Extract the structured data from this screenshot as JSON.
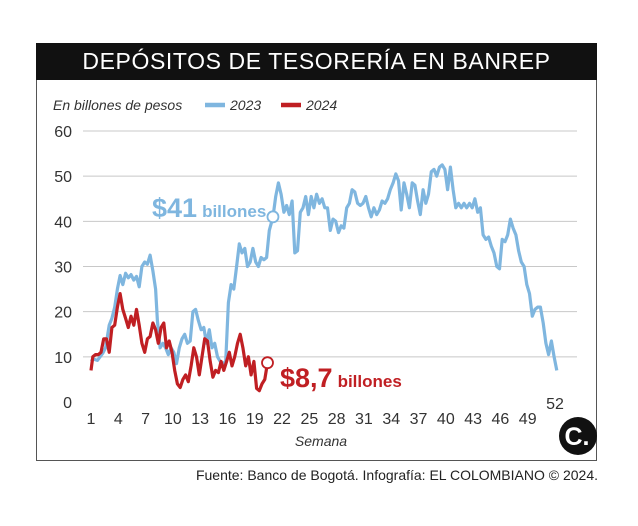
{
  "chart_data": {
    "type": "line",
    "title": "DEPÓSITOS DE TESORERÍA EN BANREP",
    "subtitle": "En billones de pesos",
    "xlabel": "Semana",
    "ylabel": "",
    "ylim": [
      0,
      60
    ],
    "xlim": [
      1,
      52
    ],
    "y_ticks": [
      0,
      10,
      20,
      30,
      40,
      50,
      60
    ],
    "x_ticks": [
      1,
      4,
      7,
      10,
      13,
      16,
      19,
      22,
      25,
      28,
      31,
      34,
      37,
      40,
      43,
      46,
      49,
      52
    ],
    "grid": true,
    "legend_position": "top",
    "series": [
      {
        "name": "2023",
        "color": "#7fb6df",
        "points": [
          [
            1,
            9
          ],
          [
            1.3,
            9.5
          ],
          [
            1.7,
            9.2
          ],
          [
            2,
            10
          ],
          [
            2.3,
            10.8
          ],
          [
            2.6,
            12
          ],
          [
            3,
            17
          ],
          [
            3.3,
            18.5
          ],
          [
            3.6,
            21
          ],
          [
            3.9,
            25
          ],
          [
            4.2,
            28
          ],
          [
            4.5,
            26
          ],
          [
            4.8,
            28.5
          ],
          [
            5.1,
            27.5
          ],
          [
            5.4,
            28.2
          ],
          [
            5.7,
            27
          ],
          [
            6,
            27.8
          ],
          [
            6.3,
            25.5
          ],
          [
            6.6,
            30
          ],
          [
            6.9,
            31
          ],
          [
            7.2,
            30.5
          ],
          [
            7.5,
            32.5
          ],
          [
            7.8,
            29
          ],
          [
            8.1,
            25
          ],
          [
            8.3,
            18
          ],
          [
            8.6,
            12
          ],
          [
            8.9,
            13
          ],
          [
            9.2,
            12
          ],
          [
            9.5,
            10.5
          ],
          [
            9.8,
            12
          ],
          [
            10.1,
            11
          ],
          [
            10.4,
            8.5
          ],
          [
            10.7,
            12
          ],
          [
            11,
            14
          ],
          [
            11.3,
            15
          ],
          [
            11.6,
            13
          ],
          [
            11.9,
            13.5
          ],
          [
            12.2,
            20
          ],
          [
            12.5,
            20.5
          ],
          [
            12.8,
            18
          ],
          [
            13.1,
            16
          ],
          [
            13.4,
            16.5
          ],
          [
            13.7,
            13
          ],
          [
            14,
            16
          ],
          [
            14.3,
            12
          ],
          [
            14.6,
            13
          ],
          [
            14.9,
            10
          ],
          [
            15.2,
            9
          ],
          [
            15.5,
            8.5
          ],
          [
            15.8,
            9
          ],
          [
            16.1,
            22
          ],
          [
            16.4,
            26
          ],
          [
            16.7,
            25
          ],
          [
            17,
            30
          ],
          [
            17.3,
            35
          ],
          [
            17.6,
            33
          ],
          [
            17.9,
            34
          ],
          [
            18.2,
            30
          ],
          [
            18.5,
            31
          ],
          [
            18.8,
            34
          ],
          [
            19.1,
            31
          ],
          [
            19.4,
            30
          ],
          [
            19.7,
            32
          ],
          [
            20,
            31.5
          ],
          [
            20.3,
            32
          ],
          [
            20.6,
            38
          ],
          [
            21,
            41
          ],
          [
            21.3,
            45.5
          ],
          [
            21.6,
            48.5
          ],
          [
            21.9,
            46
          ],
          [
            22.2,
            42
          ],
          [
            22.5,
            43.5
          ],
          [
            22.8,
            41.5
          ],
          [
            23.1,
            44.5
          ],
          [
            23.4,
            33
          ],
          [
            23.7,
            33.5
          ],
          [
            24,
            42
          ],
          [
            24.3,
            43
          ],
          [
            24.6,
            45.5
          ],
          [
            24.9,
            41.5
          ],
          [
            25.2,
            45.5
          ],
          [
            25.5,
            43
          ],
          [
            25.8,
            46
          ],
          [
            26.1,
            44
          ],
          [
            26.4,
            45
          ],
          [
            26.7,
            43
          ],
          [
            27,
            43
          ],
          [
            27.3,
            38
          ],
          [
            27.6,
            40.5
          ],
          [
            27.9,
            40
          ],
          [
            28.2,
            37.5
          ],
          [
            28.5,
            39
          ],
          [
            28.8,
            38.5
          ],
          [
            29.1,
            43
          ],
          [
            29.4,
            44
          ],
          [
            29.7,
            47
          ],
          [
            30,
            46.5
          ],
          [
            30.3,
            44
          ],
          [
            30.6,
            43.5
          ],
          [
            30.9,
            44
          ],
          [
            31.2,
            45.5
          ],
          [
            31.5,
            43
          ],
          [
            31.8,
            41
          ],
          [
            32.1,
            43
          ],
          [
            32.4,
            41.5
          ],
          [
            32.7,
            42.5
          ],
          [
            33,
            44.5
          ],
          [
            33.3,
            44
          ],
          [
            33.6,
            45
          ],
          [
            33.9,
            47
          ],
          [
            34.2,
            48.5
          ],
          [
            34.5,
            50.5
          ],
          [
            34.8,
            49
          ],
          [
            35.1,
            42.5
          ],
          [
            35.4,
            48.5
          ],
          [
            35.7,
            46
          ],
          [
            36,
            43
          ],
          [
            36.3,
            48.5
          ],
          [
            36.6,
            48
          ],
          [
            36.9,
            44.5
          ],
          [
            37.2,
            41.5
          ],
          [
            37.5,
            47
          ],
          [
            37.8,
            44
          ],
          [
            38.1,
            46
          ],
          [
            38.4,
            51
          ],
          [
            38.7,
            51.5
          ],
          [
            39,
            50
          ],
          [
            39.3,
            52
          ],
          [
            39.6,
            52.5
          ],
          [
            39.9,
            51.5
          ],
          [
            40.2,
            47
          ],
          [
            40.5,
            52
          ],
          [
            40.8,
            47
          ],
          [
            41.1,
            43
          ],
          [
            41.4,
            44
          ],
          [
            41.7,
            43
          ],
          [
            42,
            44
          ],
          [
            42.3,
            43
          ],
          [
            42.6,
            44
          ],
          [
            42.9,
            43
          ],
          [
            43.2,
            45
          ],
          [
            43.5,
            42
          ],
          [
            43.8,
            43
          ],
          [
            44.1,
            37
          ],
          [
            44.4,
            36
          ],
          [
            44.7,
            36.5
          ],
          [
            45,
            34.5
          ],
          [
            45.3,
            33
          ],
          [
            45.6,
            30
          ],
          [
            45.9,
            29.5
          ],
          [
            46.2,
            36
          ],
          [
            46.5,
            35.5
          ],
          [
            46.8,
            37
          ],
          [
            47.1,
            40.5
          ],
          [
            47.4,
            38.5
          ],
          [
            47.7,
            37
          ],
          [
            48,
            33.5
          ],
          [
            48.3,
            31
          ],
          [
            48.6,
            30
          ],
          [
            48.9,
            26
          ],
          [
            49.2,
            24
          ],
          [
            49.5,
            19
          ],
          [
            49.8,
            20.5
          ],
          [
            50.1,
            21
          ],
          [
            50.4,
            21
          ],
          [
            50.7,
            17.5
          ],
          [
            51,
            13
          ],
          [
            51.3,
            10.5
          ],
          [
            51.6,
            13.5
          ],
          [
            51.9,
            10
          ],
          [
            52.2,
            7
          ]
        ]
      },
      {
        "name": "2024",
        "color": "#c01f23",
        "points": [
          [
            1,
            7
          ],
          [
            1.2,
            10
          ],
          [
            1.5,
            10.5
          ],
          [
            1.8,
            10.5
          ],
          [
            2.1,
            11
          ],
          [
            2.4,
            14
          ],
          [
            2.7,
            14
          ],
          [
            3,
            11
          ],
          [
            3.3,
            16.5
          ],
          [
            3.6,
            17
          ],
          [
            3.9,
            21
          ],
          [
            4.2,
            24
          ],
          [
            4.5,
            20.5
          ],
          [
            4.8,
            18.5
          ],
          [
            5.1,
            16.5
          ],
          [
            5.4,
            19
          ],
          [
            5.7,
            17
          ],
          [
            6,
            20.5
          ],
          [
            6.3,
            17
          ],
          [
            6.6,
            13
          ],
          [
            6.9,
            11
          ],
          [
            7.2,
            14
          ],
          [
            7.5,
            14.5
          ],
          [
            7.8,
            17.5
          ],
          [
            8.1,
            16
          ],
          [
            8.4,
            13
          ],
          [
            8.7,
            16.5
          ],
          [
            9,
            17.5
          ],
          [
            9.3,
            12
          ],
          [
            9.6,
            13.5
          ],
          [
            9.9,
            11
          ],
          [
            10.2,
            7
          ],
          [
            10.5,
            4
          ],
          [
            10.8,
            3.2
          ],
          [
            11.1,
            5
          ],
          [
            11.4,
            6
          ],
          [
            11.7,
            4.5
          ],
          [
            12,
            8
          ],
          [
            12.3,
            12
          ],
          [
            12.6,
            10
          ],
          [
            12.9,
            6
          ],
          [
            13.2,
            10
          ],
          [
            13.5,
            14
          ],
          [
            13.8,
            13.5
          ],
          [
            14.1,
            9
          ],
          [
            14.4,
            5.5
          ],
          [
            14.7,
            7
          ],
          [
            15,
            6.5
          ],
          [
            15.3,
            9
          ],
          [
            15.6,
            7
          ],
          [
            15.9,
            9
          ],
          [
            16.2,
            11
          ],
          [
            16.5,
            8
          ],
          [
            16.8,
            10
          ],
          [
            17.1,
            13
          ],
          [
            17.4,
            15
          ],
          [
            17.7,
            12
          ],
          [
            18,
            8
          ],
          [
            18.3,
            10
          ],
          [
            18.6,
            6
          ],
          [
            18.9,
            9
          ],
          [
            19.2,
            3
          ],
          [
            19.5,
            2.5
          ],
          [
            19.8,
            4
          ],
          [
            20.1,
            5
          ],
          [
            20.4,
            8.7
          ]
        ]
      }
    ],
    "annotations": [
      {
        "amount": "$41",
        "unit": "billones",
        "x": 21,
        "y": 41,
        "series": "2023"
      },
      {
        "amount": "$8,7",
        "unit": "billones",
        "x": 20.4,
        "y": 8.7,
        "series": "2024"
      }
    ]
  },
  "footer": {
    "source": "Fuente: Banco de Bogotá. Infografía: EL COLOMBIANO © 2024.",
    "logo_letter": "C."
  }
}
